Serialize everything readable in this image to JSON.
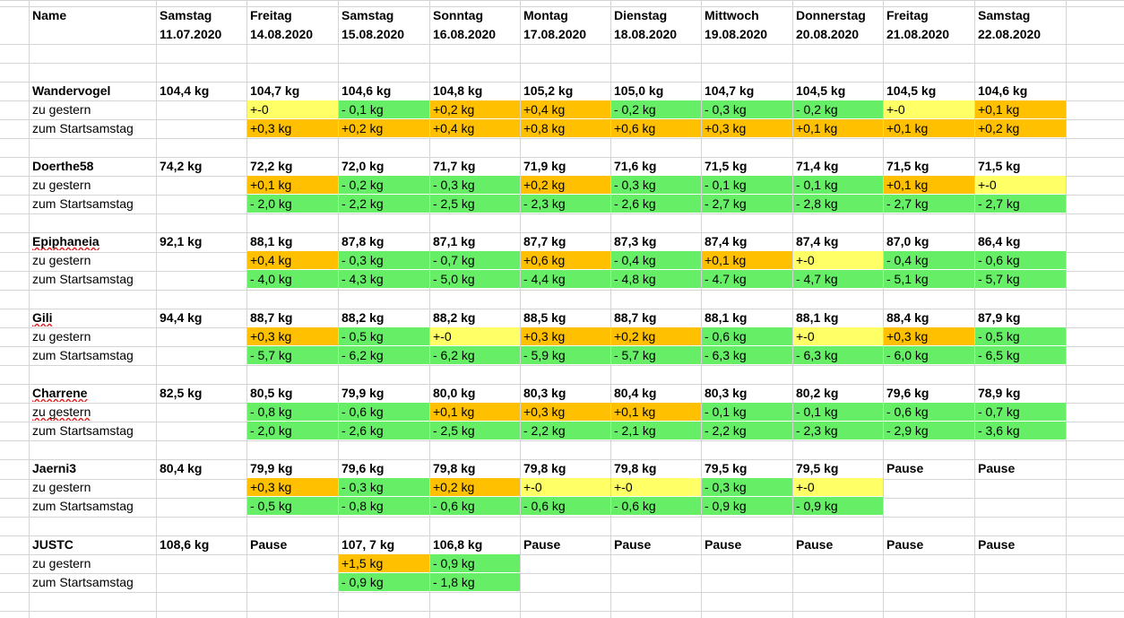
{
  "colors": {
    "decrease": "#66ee66",
    "increase": "#ffc000",
    "unchanged": "#ffff66",
    "grid": "#d4d4d4"
  },
  "header": {
    "name_label": "Name",
    "days": [
      {
        "weekday": "Samstag",
        "date": "11.07.2020"
      },
      {
        "weekday": "Freitag",
        "date": "14.08.2020"
      },
      {
        "weekday": "Samstag",
        "date": "15.08.2020"
      },
      {
        "weekday": "Sonntag",
        "date": "16.08.2020"
      },
      {
        "weekday": "Montag",
        "date": "17.08.2020"
      },
      {
        "weekday": "Dienstag",
        "date": "18.08.2020"
      },
      {
        "weekday": "Mittwoch",
        "date": "19.08.2020"
      },
      {
        "weekday": "Donnerstag",
        "date": "20.08.2020"
      },
      {
        "weekday": "Freitag",
        "date": "21.08.2020"
      },
      {
        "weekday": "Samstag",
        "date": "22.08.2020"
      }
    ]
  },
  "labels": {
    "yesterday": "zu gestern",
    "start": "zum Startsamstag"
  },
  "people": [
    {
      "name": "Wandervogel",
      "flagged": false,
      "weights": [
        "104,4 kg",
        "104,7 kg",
        "104,6 kg",
        "104,8 kg",
        "105,2 kg",
        "105,0 kg",
        "104,7 kg",
        "104,5 kg",
        "104,5 kg",
        "104,6 kg"
      ],
      "yesterday": [
        "",
        "+-0",
        "- 0,1 kg",
        "+0,2 kg",
        "+0,4 kg",
        "- 0,2 kg",
        "- 0,3 kg",
        "- 0,2 kg",
        "+-0",
        "+0,1 kg"
      ],
      "start": [
        "",
        "+0,3 kg",
        "+0,2 kg",
        "+0,4 kg",
        "+0,8 kg",
        "+0,6 kg",
        "+0,3 kg",
        "+0,1 kg",
        "+0,1 kg",
        "+0,2 kg"
      ]
    },
    {
      "name": "Doerthe58",
      "flagged": false,
      "weights": [
        "74,2 kg",
        "72,2 kg",
        "72,0 kg",
        "71,7 kg",
        "71,9 kg",
        "71,6 kg",
        "71,5 kg",
        "71,4 kg",
        "71,5 kg",
        "71,5 kg"
      ],
      "yesterday": [
        "",
        "+0,1 kg",
        "- 0,2 kg",
        "- 0,3 kg",
        "+0,2 kg",
        "- 0,3 kg",
        "- 0,1 kg",
        "- 0,1 kg",
        "+0,1 kg",
        "+-0"
      ],
      "start": [
        "",
        "- 2,0 kg",
        "- 2,2 kg",
        "- 2,5 kg",
        "- 2,3 kg",
        "- 2,6 kg",
        "- 2,7 kg",
        "- 2,8 kg",
        "- 2,7 kg",
        "- 2,7 kg"
      ]
    },
    {
      "name": "Epiphaneia",
      "flagged": true,
      "weights": [
        "92,1 kg",
        "88,1 kg",
        "87,8 kg",
        "87,1 kg",
        "87,7 kg",
        "87,3 kg",
        "87,4 kg",
        "87,4 kg",
        "87,0 kg",
        "86,4 kg"
      ],
      "yesterday": [
        "",
        "+0,4 kg",
        "- 0,3 kg",
        "- 0,7 kg",
        "+0,6 kg",
        "- 0,4 kg",
        "+0,1 kg",
        "+-0",
        "- 0,4 kg",
        "- 0,6 kg"
      ],
      "start": [
        "",
        "- 4,0 kg",
        "- 4,3 kg",
        "- 5,0 kg",
        "- 4,4 kg",
        "- 4,8 kg",
        "- 4.7 kg",
        "- 4,7 kg",
        "- 5,1 kg",
        "- 5,7 kg"
      ]
    },
    {
      "name": "Gili",
      "flagged": true,
      "weights": [
        "94,4 kg",
        "88,7 kg",
        "88,2 kg",
        "88,2 kg",
        "88,5 kg",
        "88,7 kg",
        "88,1 kg",
        "88,1 kg",
        "88,4 kg",
        "87,9 kg"
      ],
      "yesterday": [
        "",
        "+0,3 kg",
        "- 0,5 kg",
        "+-0",
        "+0,3 kg",
        "+0,2 kg",
        "- 0,6 kg",
        "+-0",
        "+0,3 kg",
        "- 0,5 kg"
      ],
      "start": [
        "",
        "- 5,7 kg",
        "- 6,2 kg",
        "- 6,2 kg",
        "- 5,9 kg",
        "- 5,7 kg",
        "- 6,3 kg",
        "- 6,3 kg",
        "- 6,0 kg",
        "- 6,5 kg"
      ]
    },
    {
      "name": "Charrene",
      "flagged": true,
      "yesterday_flagged": true,
      "weights": [
        "82,5 kg",
        "80,5 kg",
        "79,9 kg",
        "80,0 kg",
        "80,3 kg",
        "80,4 kg",
        "80,3 kg",
        "80,2 kg",
        "79,6 kg",
        "78,9 kg"
      ],
      "yesterday": [
        "",
        "- 0,8 kg",
        "- 0,6 kg",
        "+0,1 kg",
        "+0,3 kg",
        "+0,1 kg",
        "- 0,1 kg",
        "- 0,1 kg",
        "- 0,6 kg",
        "- 0,7 kg"
      ],
      "start": [
        "",
        "- 2,0 kg",
        "- 2,6 kg",
        "- 2,5 kg",
        "- 2,2 kg",
        "- 2,1 kg",
        "- 2,2 kg",
        "- 2,3 kg",
        "- 2,9 kg",
        "- 3,6 kg"
      ]
    },
    {
      "name": "Jaerni3",
      "flagged": false,
      "weights": [
        "80,4 kg",
        "79,9 kg",
        "79,6 kg",
        "79,8 kg",
        "79,8 kg",
        "79,8 kg",
        "79,5 kg",
        "79,5 kg",
        "Pause",
        "Pause"
      ],
      "yesterday": [
        "",
        "+0,3 kg",
        "- 0,3 kg",
        "+0,2 kg",
        "+-0",
        "+-0",
        "- 0,3 kg",
        "+-0",
        "",
        ""
      ],
      "start": [
        "",
        "- 0,5 kg",
        "- 0,8 kg",
        "- 0,6 kg",
        "- 0,6 kg",
        "- 0,6 kg",
        "- 0,9 kg",
        "- 0,9 kg",
        "",
        ""
      ]
    },
    {
      "name": "JUSTC",
      "flagged": false,
      "weights": [
        "108,6 kg",
        "Pause",
        "107, 7 kg",
        "106,8 kg",
        "Pause",
        "Pause",
        "Pause",
        "Pause",
        "Pause",
        "Pause"
      ],
      "yesterday": [
        "",
        "",
        "+1,5 kg",
        "- 0,9 kg",
        "",
        "",
        "",
        "",
        "",
        ""
      ],
      "start": [
        "",
        "",
        "- 0,9 kg",
        "- 1,8 kg",
        "",
        "",
        "",
        "",
        "",
        ""
      ]
    }
  ]
}
